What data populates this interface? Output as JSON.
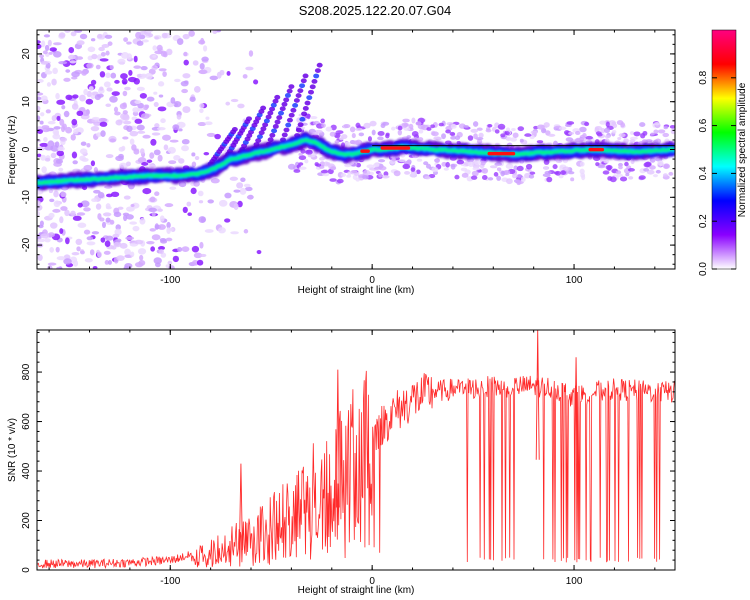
{
  "title": "S208.2025.122.20.07.G04",
  "chart_data": [
    {
      "type": "heatmap",
      "xlabel": "Height of straight line (km)",
      "ylabel": "Frequency (Hz)",
      "xlim": [
        -166,
        150
      ],
      "ylim": [
        -25,
        25
      ],
      "xticks": [
        -100,
        0,
        100
      ],
      "yticks": [
        -20,
        -10,
        0,
        10,
        20
      ],
      "grid": false,
      "colorbar": {
        "label": "Normalized spectral amplitude",
        "range": [
          0,
          1
        ],
        "ticks": [
          "0.0",
          "0.2",
          "0.4",
          "0.6",
          "0.8"
        ],
        "colors": [
          "#ffffff",
          "#8a00ff",
          "#0000ff",
          "#00ffff",
          "#00ff00",
          "#ffff00",
          "#ff0000",
          "#ff0080"
        ]
      },
      "ridge": {
        "x": [
          -166,
          -150,
          -130,
          -110,
          -95,
          -85,
          -78,
          -70,
          -60,
          -50,
          -40,
          -33,
          -28,
          -22,
          -16,
          -10,
          -5,
          0,
          5,
          15,
          30,
          50,
          70,
          90,
          110,
          130,
          150
        ],
        "y": [
          -7,
          -6.5,
          -6,
          -5.5,
          -5.5,
          -5,
          -4,
          -2,
          -1,
          0,
          1,
          2,
          1.5,
          0,
          -1,
          -1,
          -0.5,
          0,
          0,
          0.5,
          0,
          -0.5,
          -1,
          -0.5,
          0,
          -0.5,
          0
        ]
      }
    },
    {
      "type": "line",
      "xlabel": "Height of straight line (km)",
      "ylabel": "SNR (10 * v/v)",
      "xlim": [
        -166,
        150
      ],
      "ylim": [
        0,
        970
      ],
      "xticks": [
        -100,
        0,
        100
      ],
      "yticks": [
        0,
        200,
        400,
        600,
        800
      ],
      "grid": false,
      "color": "#ff2a2a",
      "envelope": {
        "x": [
          -166,
          -140,
          -120,
          -100,
          -90,
          -80,
          -70,
          -60,
          -50,
          -40,
          -30,
          -20,
          -10,
          0,
          10,
          20,
          30,
          40,
          50,
          60,
          70,
          80,
          90,
          100,
          110,
          120,
          130,
          140,
          150
        ],
        "y": [
          25,
          25,
          30,
          40,
          60,
          80,
          120,
          150,
          200,
          260,
          330,
          400,
          470,
          550,
          630,
          690,
          720,
          730,
          735,
          740,
          740,
          745,
          735,
          700,
          720,
          730,
          725,
          720,
          720
        ]
      },
      "peaks": [
        {
          "x": -65,
          "y": 430
        },
        {
          "x": -17,
          "y": 810
        },
        {
          "x": 82,
          "y": 970
        },
        {
          "x": 101,
          "y": 860
        }
      ]
    }
  ]
}
